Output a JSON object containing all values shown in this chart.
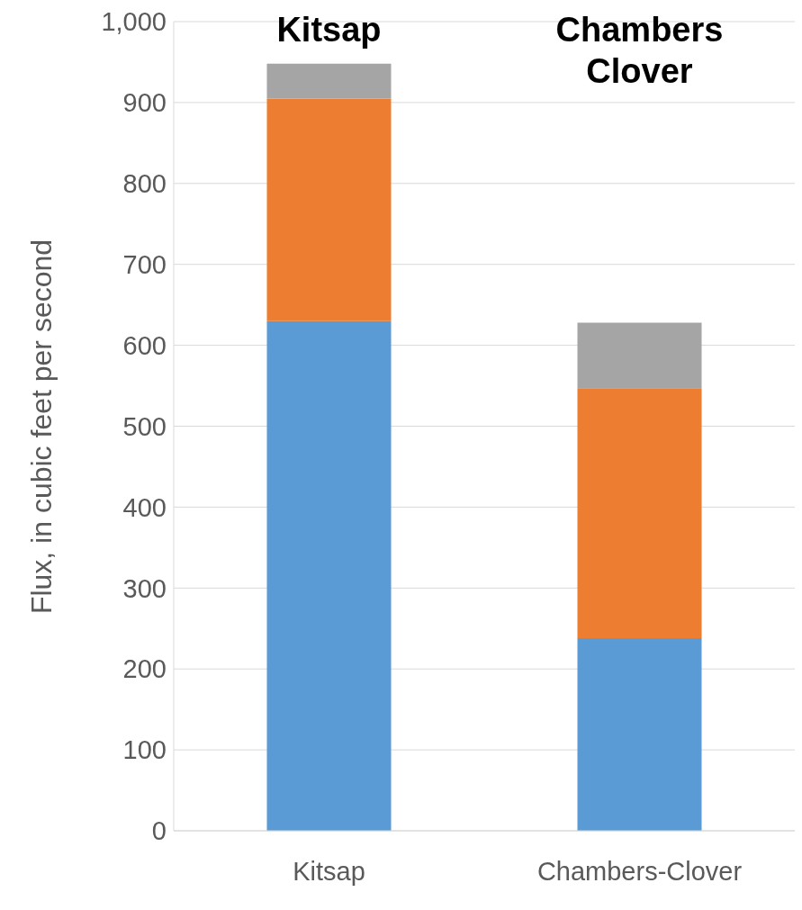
{
  "chart_data": {
    "type": "bar",
    "stacked": true,
    "categories": [
      "Kitsap",
      "Chambers-Clover"
    ],
    "series": [
      {
        "color": "#5b9bd5",
        "values": [
          630,
          238
        ]
      },
      {
        "color": "#ed7d31",
        "values": [
          275,
          309
        ]
      },
      {
        "color": "#a5a5a5",
        "values": [
          43,
          81
        ]
      }
    ],
    "ylabel": "Flux, in cubic feet per second",
    "ylim": [
      0,
      1000
    ],
    "yticks": [
      0,
      100,
      200,
      300,
      400,
      500,
      600,
      700,
      800,
      900,
      {
        "value": 1000,
        "label": "1,000"
      }
    ],
    "grid": "y",
    "annotations": [
      "Kitsap",
      "Chambers Clover"
    ]
  }
}
